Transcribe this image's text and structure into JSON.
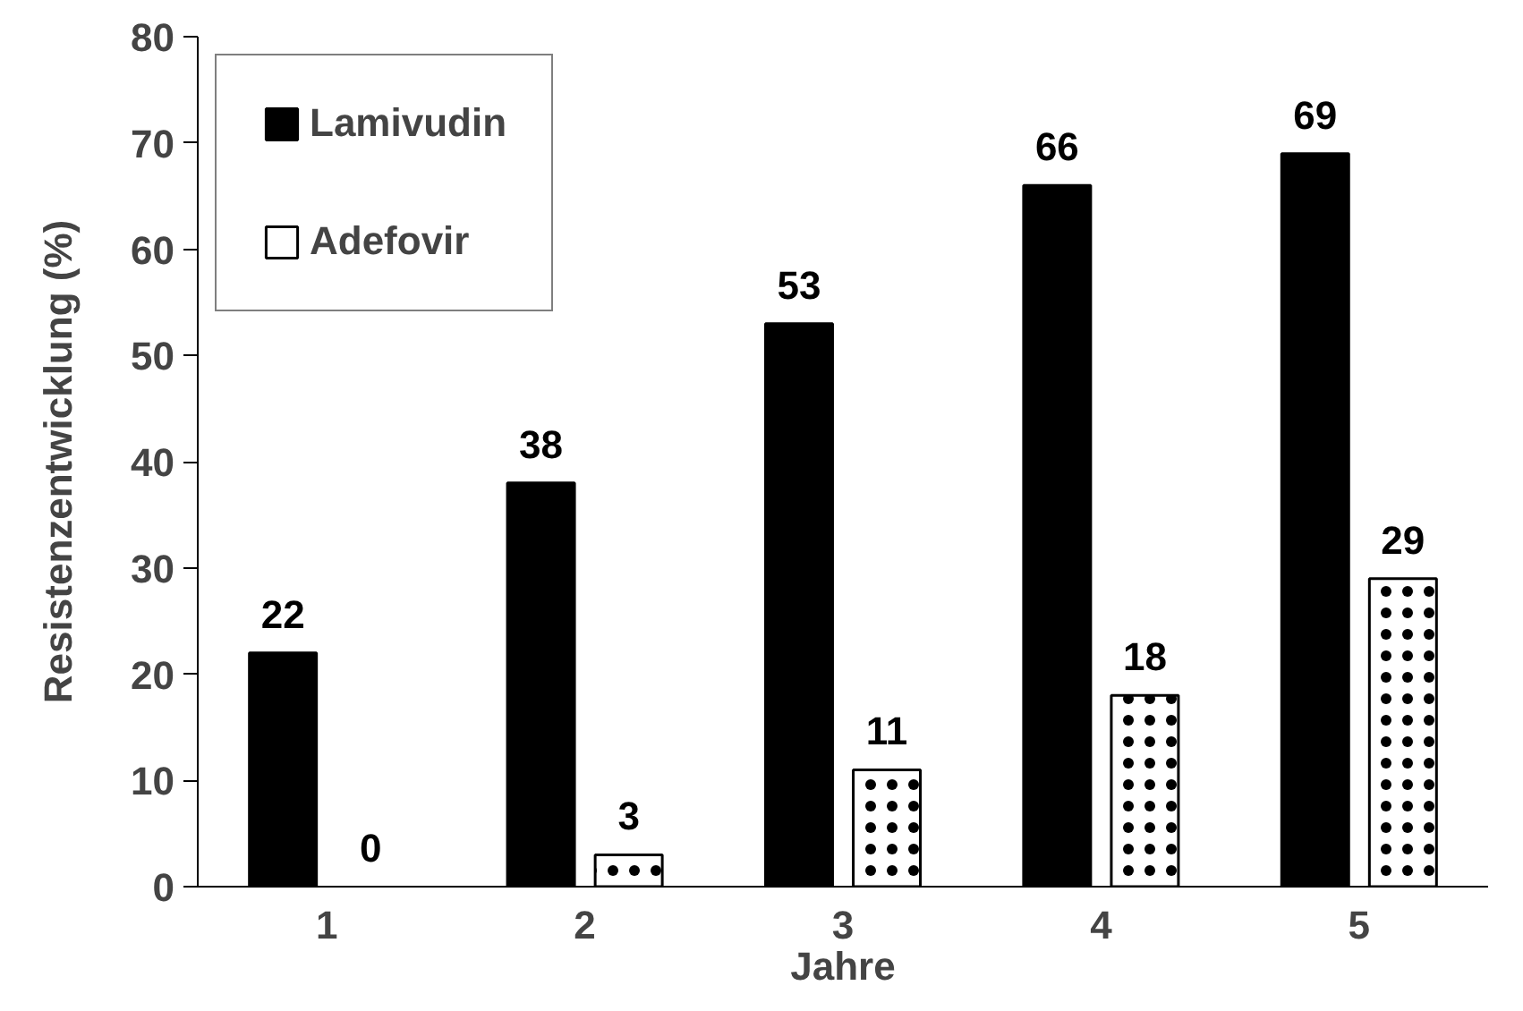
{
  "chart_data": {
    "type": "bar",
    "xlabel": "Jahre",
    "ylabel": "Resistenzentwicklung (%)",
    "categories": [
      "1",
      "2",
      "3",
      "4",
      "5"
    ],
    "series": [
      {
        "name": "Lamivudin",
        "color": "#000000",
        "values": [
          22,
          38,
          53,
          66,
          69
        ]
      },
      {
        "name": "Adefovir",
        "color": "#ffffff",
        "values": [
          0,
          3,
          11,
          18,
          29
        ]
      }
    ],
    "ylim": [
      0,
      80
    ],
    "yticks": [
      0,
      10,
      20,
      30,
      40,
      50,
      60,
      70,
      80
    ],
    "grid": false,
    "legend": "top left",
    "data_labels": true
  }
}
